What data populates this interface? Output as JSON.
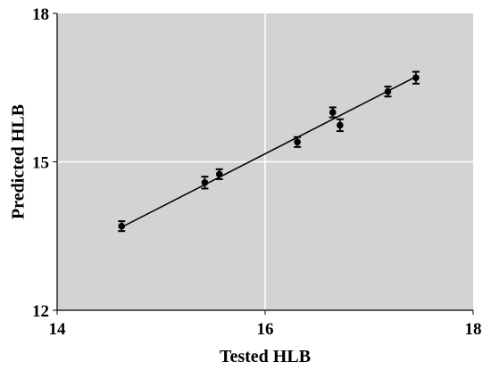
{
  "chart_data": {
    "type": "scatter",
    "title": "",
    "xlabel": "Tested HLB",
    "ylabel": "Predicted HLB",
    "xlim": [
      14,
      18
    ],
    "ylim": [
      12,
      18
    ],
    "x_ticks": [
      14,
      16,
      18
    ],
    "x_tick_labels": [
      "14",
      "16",
      "18"
    ],
    "y_ticks": [
      12,
      15,
      18
    ],
    "y_tick_labels": [
      "12",
      "15",
      "18"
    ],
    "grid": true,
    "legend": "none",
    "background_color": "#d3d3d3",
    "grid_color": "#ffffff",
    "marker_color": "#000000",
    "series": [
      {
        "points": [
          {
            "x": 14.62,
            "y": 13.7,
            "err": 0.1
          },
          {
            "x": 15.42,
            "y": 14.58,
            "err": 0.12
          },
          {
            "x": 15.56,
            "y": 14.75,
            "err": 0.1
          },
          {
            "x": 16.31,
            "y": 15.4,
            "err": 0.1
          },
          {
            "x": 16.65,
            "y": 16.0,
            "err": 0.1
          },
          {
            "x": 16.72,
            "y": 15.74,
            "err": 0.12
          },
          {
            "x": 17.18,
            "y": 16.42,
            "err": 0.1
          },
          {
            "x": 17.45,
            "y": 16.7,
            "err": 0.12
          }
        ]
      }
    ],
    "fit_line": {
      "x": [
        14.62,
        17.45
      ],
      "y": [
        13.68,
        16.72
      ]
    }
  }
}
